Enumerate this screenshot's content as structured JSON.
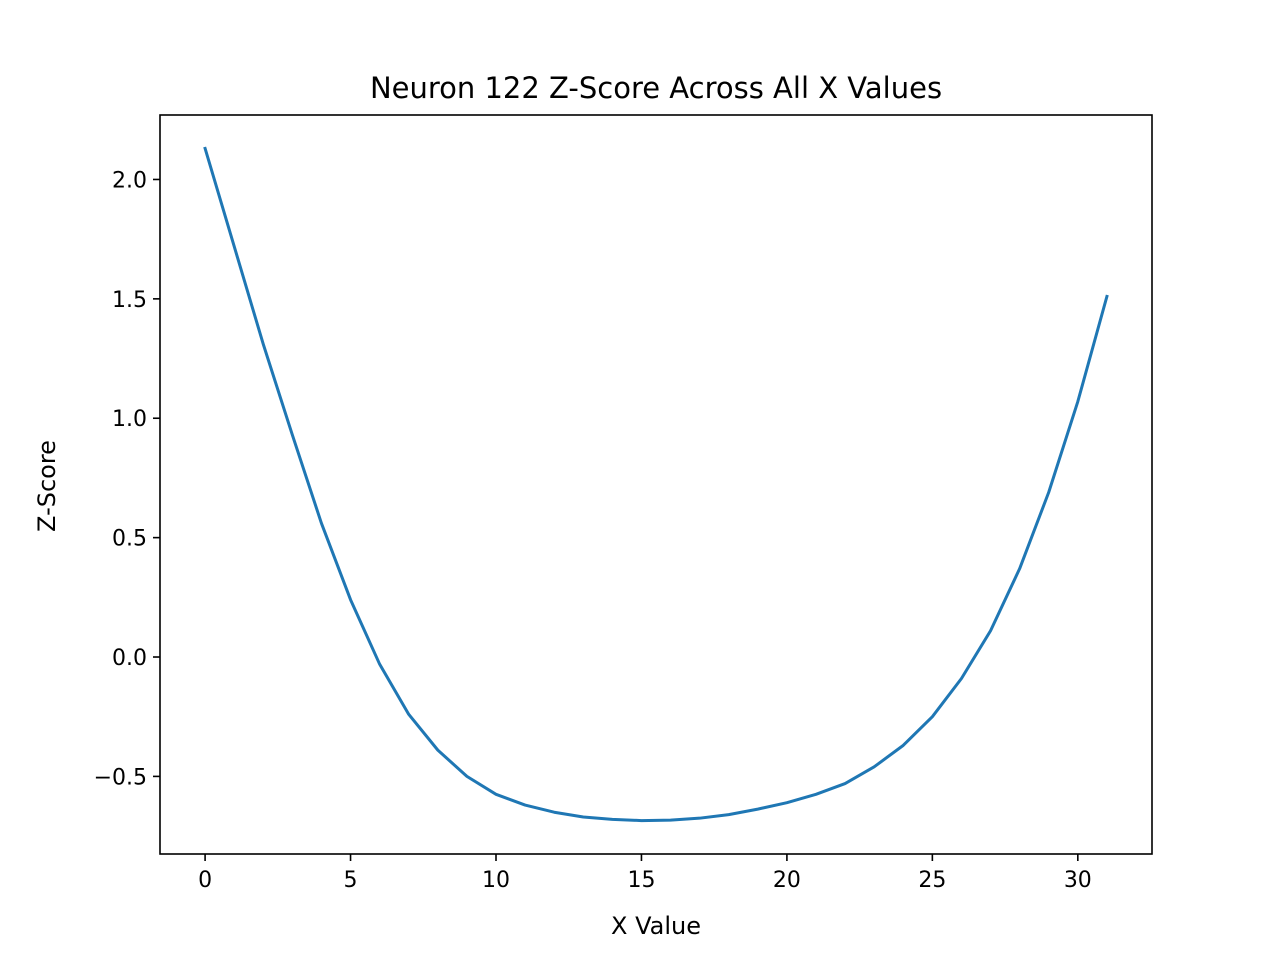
{
  "chart_data": {
    "type": "line",
    "title": "Neuron 122 Z-Score Across All X Values",
    "xlabel": "X Value",
    "ylabel": "Z-Score",
    "xlim": [
      -1.55,
      32.55
    ],
    "ylim": [
      -0.825,
      2.27
    ],
    "grid": false,
    "legend": "none",
    "line_color": "#1f77b4",
    "x_ticks": [
      {
        "value": 0,
        "label": "0"
      },
      {
        "value": 5,
        "label": "5"
      },
      {
        "value": 10,
        "label": "10"
      },
      {
        "value": 15,
        "label": "15"
      },
      {
        "value": 20,
        "label": "20"
      },
      {
        "value": 25,
        "label": "25"
      },
      {
        "value": 30,
        "label": "30"
      }
    ],
    "y_ticks": [
      {
        "value": -0.5,
        "label": "−0.5"
      },
      {
        "value": 0.0,
        "label": "0.0"
      },
      {
        "value": 0.5,
        "label": "0.5"
      },
      {
        "value": 1.0,
        "label": "1.0"
      },
      {
        "value": 1.5,
        "label": "1.5"
      },
      {
        "value": 2.0,
        "label": "2.0"
      }
    ],
    "series": [
      {
        "x": [
          0,
          1,
          2,
          3,
          4,
          5,
          6,
          7,
          8,
          9,
          10,
          11,
          12,
          13,
          14,
          15,
          16,
          17,
          18,
          19,
          20,
          21,
          22,
          23,
          24,
          25,
          26,
          27,
          28,
          29,
          30,
          31
        ],
        "values": [
          2.13,
          1.72,
          1.31,
          0.93,
          0.56,
          0.24,
          -0.03,
          -0.24,
          -0.39,
          -0.5,
          -0.575,
          -0.62,
          -0.65,
          -0.67,
          -0.68,
          -0.685,
          -0.683,
          -0.675,
          -0.66,
          -0.637,
          -0.61,
          -0.575,
          -0.53,
          -0.46,
          -0.37,
          -0.25,
          -0.09,
          0.11,
          0.37,
          0.69,
          1.07,
          1.51
        ]
      }
    ]
  }
}
